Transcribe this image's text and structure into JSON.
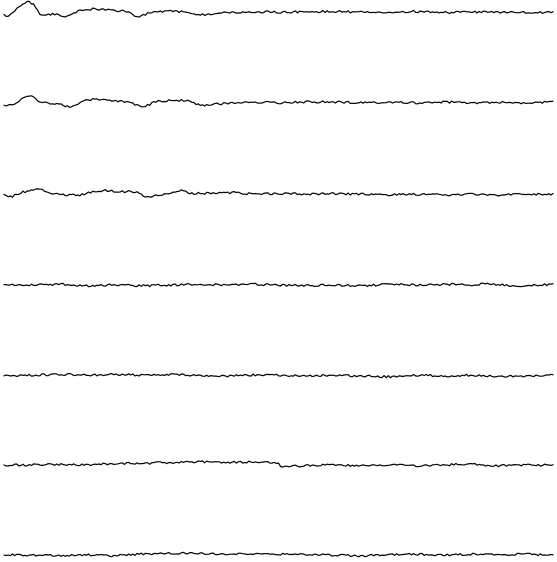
{
  "chart_data": {
    "type": "line",
    "title": "",
    "xlabel": "",
    "ylabel": "",
    "axes_visible": false,
    "grid": false,
    "legend": "none",
    "line_color": "#000000",
    "background_color": "#ffffff",
    "x_range": [
      0,
      1
    ],
    "series": [
      {
        "y_range": [
          -1,
          1
        ],
        "points": [
          [
            0,
            0.1
          ],
          [
            0.01,
            0.05
          ],
          [
            0.02,
            0.4
          ],
          [
            0.035,
            0.85
          ],
          [
            0.045,
            0.95
          ],
          [
            0.055,
            0.75
          ],
          [
            0.065,
            0.2
          ],
          [
            0.075,
            0.12
          ],
          [
            0.09,
            0.2
          ],
          [
            0.105,
            0.05
          ],
          [
            0.12,
            0.1
          ],
          [
            0.135,
            0.4
          ],
          [
            0.16,
            0.5
          ],
          [
            0.19,
            0.45
          ],
          [
            0.22,
            0.35
          ],
          [
            0.245,
            0.02
          ],
          [
            0.265,
            0.25
          ],
          [
            0.3,
            0.4
          ],
          [
            0.33,
            0.3
          ],
          [
            0.36,
            0.15
          ],
          [
            0.4,
            0.25
          ],
          [
            0.45,
            0.32
          ],
          [
            0.5,
            0.3
          ],
          [
            0.55,
            0.32
          ],
          [
            0.6,
            0.35
          ],
          [
            0.65,
            0.3
          ],
          [
            0.7,
            0.3
          ],
          [
            0.75,
            0.35
          ],
          [
            0.8,
            0.28
          ],
          [
            0.85,
            0.32
          ],
          [
            0.9,
            0.3
          ],
          [
            0.95,
            0.3
          ],
          [
            1.0,
            0.28
          ]
        ]
      },
      {
        "y_range": [
          -1,
          1
        ],
        "points": [
          [
            0,
            0.0
          ],
          [
            0.02,
            0.1
          ],
          [
            0.035,
            0.5
          ],
          [
            0.05,
            0.65
          ],
          [
            0.065,
            0.25
          ],
          [
            0.085,
            0.15
          ],
          [
            0.1,
            0.1
          ],
          [
            0.12,
            -0.05
          ],
          [
            0.14,
            0.25
          ],
          [
            0.16,
            0.42
          ],
          [
            0.185,
            0.4
          ],
          [
            0.21,
            0.3
          ],
          [
            0.235,
            0.15
          ],
          [
            0.255,
            -0.05
          ],
          [
            0.275,
            0.25
          ],
          [
            0.3,
            0.35
          ],
          [
            0.33,
            0.35
          ],
          [
            0.36,
            0.05
          ],
          [
            0.4,
            0.15
          ],
          [
            0.45,
            0.25
          ],
          [
            0.5,
            0.2
          ],
          [
            0.55,
            0.25
          ],
          [
            0.6,
            0.25
          ],
          [
            0.65,
            0.2
          ],
          [
            0.7,
            0.22
          ],
          [
            0.75,
            0.2
          ],
          [
            0.8,
            0.25
          ],
          [
            0.85,
            0.2
          ],
          [
            0.9,
            0.22
          ],
          [
            0.95,
            0.2
          ],
          [
            1.0,
            0.25
          ]
        ]
      },
      {
        "y_range": [
          -1,
          1
        ],
        "points": [
          [
            0,
            0.0
          ],
          [
            0.015,
            -0.1
          ],
          [
            0.03,
            0.15
          ],
          [
            0.05,
            0.3
          ],
          [
            0.07,
            0.35
          ],
          [
            0.085,
            0.1
          ],
          [
            0.1,
            0.05
          ],
          [
            0.12,
            0.0
          ],
          [
            0.14,
            0.0
          ],
          [
            0.16,
            0.2
          ],
          [
            0.185,
            0.3
          ],
          [
            0.21,
            0.22
          ],
          [
            0.24,
            0.2
          ],
          [
            0.26,
            -0.15
          ],
          [
            0.28,
            -0.05
          ],
          [
            0.3,
            0.1
          ],
          [
            0.32,
            0.3
          ],
          [
            0.34,
            0.1
          ],
          [
            0.38,
            0.1
          ],
          [
            0.42,
            0.15
          ],
          [
            0.46,
            0.05
          ],
          [
            0.5,
            0.1
          ],
          [
            0.55,
            0.05
          ],
          [
            0.6,
            0.08
          ],
          [
            0.65,
            0.05
          ],
          [
            0.7,
            0.0
          ],
          [
            0.75,
            0.05
          ],
          [
            0.8,
            0.0
          ],
          [
            0.85,
            0.05
          ],
          [
            0.9,
            0.0
          ],
          [
            0.95,
            0.05
          ],
          [
            1.0,
            0.05
          ]
        ]
      },
      {
        "y_range": [
          -1,
          1
        ],
        "points": [
          [
            0,
            0.0
          ],
          [
            0.05,
            0.0
          ],
          [
            0.1,
            0.05
          ],
          [
            0.15,
            -0.05
          ],
          [
            0.2,
            0.0
          ],
          [
            0.25,
            -0.05
          ],
          [
            0.3,
            0.0
          ],
          [
            0.35,
            0.05
          ],
          [
            0.4,
            0.0
          ],
          [
            0.45,
            0.05
          ],
          [
            0.5,
            0.0
          ],
          [
            0.55,
            -0.05
          ],
          [
            0.6,
            0.0
          ],
          [
            0.65,
            -0.05
          ],
          [
            0.7,
            0.05
          ],
          [
            0.75,
            0.0
          ],
          [
            0.8,
            0.05
          ],
          [
            0.85,
            0.0
          ],
          [
            0.88,
            0.1
          ],
          [
            0.9,
            0.0
          ],
          [
            0.95,
            -0.05
          ],
          [
            1.0,
            0.05
          ]
        ]
      },
      {
        "y_range": [
          -1,
          1
        ],
        "points": [
          [
            0,
            0.0
          ],
          [
            0.05,
            0.05
          ],
          [
            0.1,
            0.1
          ],
          [
            0.15,
            0.05
          ],
          [
            0.2,
            0.1
          ],
          [
            0.25,
            0.05
          ],
          [
            0.3,
            0.1
          ],
          [
            0.35,
            0.05
          ],
          [
            0.4,
            0.0
          ],
          [
            0.45,
            0.05
          ],
          [
            0.5,
            0.05
          ],
          [
            0.55,
            0.0
          ],
          [
            0.6,
            0.05
          ],
          [
            0.65,
            0.0
          ],
          [
            0.7,
            -0.05
          ],
          [
            0.75,
            0.05
          ],
          [
            0.8,
            0.0
          ],
          [
            0.85,
            0.05
          ],
          [
            0.9,
            0.0
          ],
          [
            0.95,
            0.0
          ],
          [
            1.0,
            0.05
          ]
        ]
      },
      {
        "y_range": [
          -1,
          1
        ],
        "points": [
          [
            0,
            0.0
          ],
          [
            0.05,
            0.0
          ],
          [
            0.1,
            0.05
          ],
          [
            0.15,
            0.0
          ],
          [
            0.2,
            0.1
          ],
          [
            0.25,
            0.1
          ],
          [
            0.3,
            0.15
          ],
          [
            0.35,
            0.2
          ],
          [
            0.4,
            0.15
          ],
          [
            0.45,
            0.2
          ],
          [
            0.5,
            0.15
          ],
          [
            0.505,
            -0.1
          ],
          [
            0.55,
            -0.05
          ],
          [
            0.6,
            0.0
          ],
          [
            0.65,
            -0.05
          ],
          [
            0.7,
            0.0
          ],
          [
            0.75,
            -0.05
          ],
          [
            0.8,
            0.0
          ],
          [
            0.85,
            0.05
          ],
          [
            0.9,
            -0.05
          ],
          [
            0.95,
            0.0
          ],
          [
            1.0,
            0.0
          ]
        ]
      },
      {
        "y_range": [
          -1,
          1
        ],
        "points": [
          [
            0,
            0.0
          ],
          [
            0.05,
            0.0
          ],
          [
            0.1,
            -0.05
          ],
          [
            0.15,
            0.0
          ],
          [
            0.2,
            -0.05
          ],
          [
            0.25,
            0.05
          ],
          [
            0.3,
            0.1
          ],
          [
            0.35,
            0.1
          ],
          [
            0.4,
            0.05
          ],
          [
            0.45,
            0.05
          ],
          [
            0.5,
            0.05
          ],
          [
            0.55,
            0.0
          ],
          [
            0.6,
            0.0
          ],
          [
            0.65,
            -0.05
          ],
          [
            0.7,
            0.0
          ],
          [
            0.75,
            0.05
          ],
          [
            0.8,
            0.0
          ],
          [
            0.85,
            0.05
          ],
          [
            0.9,
            0.0
          ],
          [
            0.95,
            0.05
          ],
          [
            1.0,
            0.0
          ]
        ]
      }
    ]
  }
}
